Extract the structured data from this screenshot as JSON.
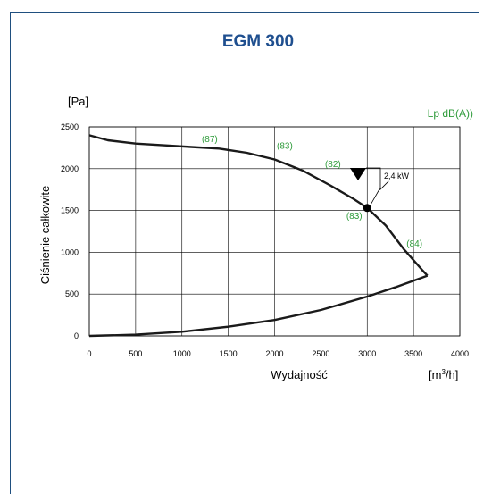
{
  "chart_data": {
    "type": "line",
    "title": "EGM 300",
    "ylabel": "Ciśnienie całkowite",
    "yunit": "[Pa]",
    "xlabel": "Wydajność",
    "xunit": "[m³/h]",
    "right_label": "Lp  dB(A))",
    "xlim": [
      0,
      4000
    ],
    "ylim": [
      0,
      2500
    ],
    "x_ticks": [
      "0",
      "500",
      "1000",
      "1500",
      "2000",
      "2500",
      "3000",
      "3500",
      "4000"
    ],
    "y_ticks": [
      "0",
      "500",
      "1000",
      "1500",
      "2000",
      "2500"
    ],
    "grid": true,
    "series": [
      {
        "name": "",
        "x": [
          0,
          200,
          500,
          800,
          1100,
          1400,
          1700,
          2000,
          2300,
          2600,
          2850,
          3000,
          3200,
          3400,
          3600,
          3650
        ],
        "y": [
          2400,
          2340,
          2300,
          2280,
          2260,
          2240,
          2190,
          2110,
          1980,
          1800,
          1640,
          1530,
          1320,
          1030,
          780,
          720
        ]
      },
      {
        "name": "",
        "x": [
          0,
          500,
          1000,
          1500,
          2000,
          2500,
          3000,
          3300,
          3650
        ],
        "y": [
          0,
          15,
          50,
          110,
          190,
          310,
          470,
          580,
          720
        ]
      }
    ],
    "operating_point": {
      "x": 3000,
      "y": 1530,
      "power": "2,4 kW"
    },
    "sound_labels": [
      {
        "text": "(87)",
        "x": 1300,
        "y": 2320
      },
      {
        "text": "(83)",
        "x": 2110,
        "y": 2240
      },
      {
        "text": "(82)",
        "x": 2630,
        "y": 2020
      },
      {
        "text": "(83)",
        "x": 2860,
        "y": 1400
      },
      {
        "text": "(84)",
        "x": 3510,
        "y": 1070
      }
    ]
  }
}
